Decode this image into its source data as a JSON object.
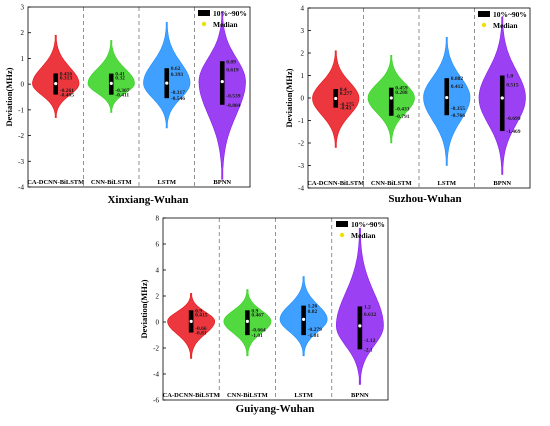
{
  "legend": {
    "range_label": "10%~90%",
    "median_label": "Median"
  },
  "chart_data": [
    {
      "type": "violin",
      "title": "Xinxiang-Wuhan",
      "ylabel": "Deviation(MHz)",
      "ylim": [
        -4,
        3
      ],
      "yticks": [
        -4,
        -3,
        -2,
        -1,
        0,
        1,
        2,
        3
      ],
      "categories": [
        "CA-DCNN-BiLSTM",
        "CNN-BiLSTM",
        "LSTM",
        "BPNN"
      ],
      "colors": [
        "#e8141b",
        "#34d21e",
        "#1f8fff",
        "#8a1ff0"
      ],
      "series": [
        {
          "p10": -0.405,
          "p90": 0.416,
          "median": 0.02,
          "labels": [
            "0.416",
            "0.313",
            "-0.261",
            "-0.405"
          ],
          "min": -1.3,
          "max": 1.9
        },
        {
          "p10": -0.411,
          "p90": 0.41,
          "median": 0.03,
          "labels": [
            "0.41",
            "0.32",
            "-0.307",
            "-0.411"
          ],
          "min": -1.1,
          "max": 1.7
        },
        {
          "p10": -0.546,
          "p90": 0.62,
          "median": 0.04,
          "labels": [
            "0.62",
            "0.393",
            "-0.317",
            "-0.546"
          ],
          "min": -1.7,
          "max": 2.4
        },
        {
          "p10": -0.804,
          "p90": 0.89,
          "median": 0.1,
          "labels": [
            "0.89",
            "0.619",
            "-0.539",
            "-0.804"
          ],
          "min": -3.7,
          "max": 2.8
        }
      ]
    },
    {
      "type": "violin",
      "title": "Suzhou-Wuhan",
      "ylabel": "Deviation(MHz)",
      "ylim": [
        -4,
        4
      ],
      "yticks": [
        -4,
        -3,
        -2,
        -1,
        0,
        1,
        2,
        3,
        4
      ],
      "categories": [
        "CA-DCNN-BiLSTM",
        "CNN-BiLSTM",
        "LSTM",
        "BPNN"
      ],
      "colors": [
        "#e8141b",
        "#34d21e",
        "#1f8fff",
        "#8a1ff0"
      ],
      "series": [
        {
          "p10": -0.43,
          "p90": 0.4,
          "median": -0.02,
          "labels": [
            "0.4",
            "0.277",
            "-0.275",
            "-0.43"
          ],
          "min": -2.2,
          "max": 2.1
        },
        {
          "p10": -0.791,
          "p90": 0.459,
          "median": 0.0,
          "labels": [
            "0.459",
            "0.208",
            "-0.433",
            "-0.791"
          ],
          "min": -2.0,
          "max": 1.9
        },
        {
          "p10": -0.766,
          "p90": 0.882,
          "median": 0.02,
          "labels": [
            "0.882",
            "0.412",
            "-0.355",
            "-0.766"
          ],
          "min": -3.0,
          "max": 2.7
        },
        {
          "p10": -1.469,
          "p90": 1.0,
          "median": 0.0,
          "labels": [
            "1.0",
            "0.515",
            "-0.699",
            "-1.469"
          ],
          "min": -3.4,
          "max": 3.6
        }
      ]
    },
    {
      "type": "violin",
      "title": "Guiyang-Wuhan",
      "ylabel": "Deviation(MHz)",
      "ylim": [
        -6,
        8
      ],
      "yticks": [
        -6,
        -4,
        -2,
        0,
        2,
        4,
        6,
        8
      ],
      "categories": [
        "CA-DCNN-BiLSTM",
        "CNN-BiLSTM",
        "LSTM",
        "BPNN"
      ],
      "colors": [
        "#e8141b",
        "#34d21e",
        "#1f8fff",
        "#8a1ff0"
      ],
      "series": [
        {
          "p10": -0.81,
          "p90": 0.9,
          "median": 0.05,
          "labels": [
            "0.9",
            "0.415",
            "-0.66",
            "-0.81"
          ],
          "min": -2.8,
          "max": 2.2
        },
        {
          "p10": -1.01,
          "p90": 0.9,
          "median": 0.05,
          "labels": [
            "0.9",
            "0.467",
            "-0.664",
            "-1.01"
          ],
          "min": -2.6,
          "max": 2.5
        },
        {
          "p10": -1.01,
          "p90": 1.26,
          "median": 0.2,
          "labels": [
            "1.26",
            "0.82",
            "-0.279",
            "-1.01"
          ],
          "min": -2.6,
          "max": 3.5
        },
        {
          "p10": -2.1,
          "p90": 1.2,
          "median": -0.3,
          "labels": [
            "1.2",
            "0.632",
            "-1.12",
            "-2.1"
          ],
          "min": -4.8,
          "max": 7.2
        }
      ]
    }
  ]
}
